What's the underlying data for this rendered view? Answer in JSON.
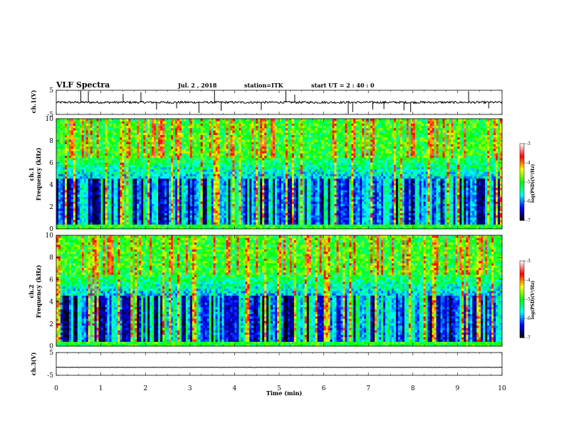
{
  "header": {
    "title": "VLF Spectra",
    "date": "Jul. 2 , 2018",
    "station": "station=ITK",
    "start_time": "start UT = 2 : 40 : 0"
  },
  "chart_data": [
    {
      "type": "line",
      "name": "ch1-waveform",
      "ylabel": "ch.1(V)",
      "ylim": [
        -5,
        5
      ],
      "yticks": [
        "5",
        "-5"
      ],
      "xlim": [
        0,
        10
      ],
      "baseline": 0,
      "spikes": [
        {
          "t": 0.55,
          "v": 4.8
        },
        {
          "t": 0.72,
          "v": 4.6
        },
        {
          "t": 1.5,
          "v": 3.5
        },
        {
          "t": 1.9,
          "v": 4.2
        },
        {
          "t": 2.25,
          "v": -3.0
        },
        {
          "t": 2.7,
          "v": -2.5
        },
        {
          "t": 3.2,
          "v": -4.4
        },
        {
          "t": 3.55,
          "v": 4.9
        },
        {
          "t": 3.7,
          "v": -3.5
        },
        {
          "t": 4.6,
          "v": -3.2
        },
        {
          "t": 5.15,
          "v": 4.9
        },
        {
          "t": 5.35,
          "v": 3.2
        },
        {
          "t": 6.55,
          "v": -4.8
        },
        {
          "t": 6.65,
          "v": -4.0
        },
        {
          "t": 7.1,
          "v": -3.0
        },
        {
          "t": 7.35,
          "v": -2.8
        },
        {
          "t": 7.8,
          "v": -3.3
        },
        {
          "t": 7.95,
          "v": -4.0
        },
        {
          "t": 9.25,
          "v": 4.5
        },
        {
          "t": 9.7,
          "v": -2.5
        }
      ]
    },
    {
      "type": "heatmap",
      "name": "ch1-spectrogram",
      "ylabel": [
        "ch.1",
        "Frequency (kHz)"
      ],
      "ylim": [
        0,
        10
      ],
      "yticks": [
        "0",
        "2",
        "4",
        "6",
        "8",
        "10"
      ],
      "xlim": [
        0,
        10
      ],
      "colorbar": {
        "label": "log(PSD)(V²/Hz)",
        "range": [
          -7,
          -3
        ],
        "ticks": [
          "-3",
          "-4",
          "-5",
          "-6",
          "-7"
        ]
      }
    },
    {
      "type": "heatmap",
      "name": "ch2-spectrogram",
      "ylabel": [
        "ch.2",
        "Frequency (kHz)"
      ],
      "ylim": [
        0,
        10
      ],
      "yticks": [
        "0",
        "2",
        "4",
        "6",
        "8",
        "10"
      ],
      "xlim": [
        0,
        10
      ],
      "colorbar": {
        "label": "log(PSD)(V²/Hz)",
        "range": [
          -7,
          -3
        ],
        "ticks": [
          "-3",
          "-4",
          "-5",
          "-6",
          "-7"
        ]
      }
    },
    {
      "type": "line",
      "name": "ch3-waveform",
      "ylabel": "ch.3(V)",
      "ylim": [
        -5,
        5
      ],
      "yticks": [
        "5",
        "-5"
      ],
      "xlim": [
        0,
        10
      ],
      "baseline": -1.5,
      "spikes": []
    }
  ],
  "x_axis": {
    "label": "Time (min)",
    "ticks": [
      "0",
      "1",
      "2",
      "3",
      "4",
      "5",
      "6",
      "7",
      "8",
      "9",
      "10"
    ],
    "range": [
      0,
      10
    ]
  },
  "colors": {
    "colormap": [
      "#000000",
      "#0000ff",
      "#00ffff",
      "#00ff00",
      "#ffff00",
      "#ff0000",
      "#ffffff"
    ]
  }
}
